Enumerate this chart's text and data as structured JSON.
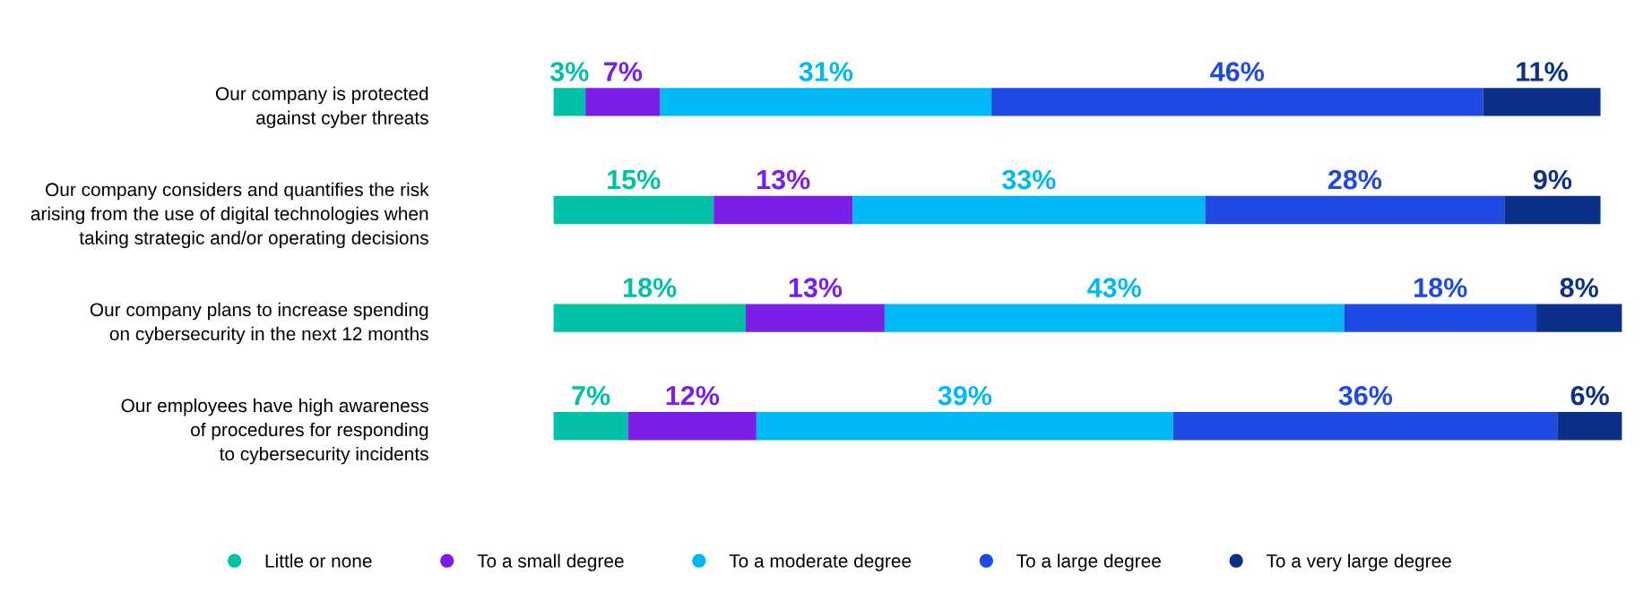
{
  "chart_data": {
    "type": "bar",
    "orientation": "horizontal",
    "stacked": true,
    "categories": [
      "Our company is protected\nagainst cyber threats",
      "Our company considers and quantifies the risk\narising from the use of digital technologies when\ntaking strategic and/or operating decisions",
      "Our company plans to increase spending\non cybersecurity in the next 12 months",
      "Our employees have high awareness\nof procedures for responding\nto cybersecurity incidents"
    ],
    "series": [
      {
        "name": "Little or none",
        "color": "#00c0a8",
        "values": [
          3,
          15,
          18,
          7
        ],
        "value_labels": [
          "3%",
          "15%",
          "18%",
          "7%"
        ]
      },
      {
        "name": "To a small degree",
        "color": "#7a1ee8",
        "values": [
          7,
          13,
          13,
          12
        ],
        "value_labels": [
          "7%",
          "13%",
          "13%",
          "12%"
        ]
      },
      {
        "name": "To a moderate degree",
        "color": "#00b8f5",
        "values": [
          31,
          33,
          43,
          39
        ],
        "value_labels": [
          "31%",
          "33%",
          "43%",
          "39%"
        ]
      },
      {
        "name": "To a large degree",
        "color": "#1e49e2",
        "values": [
          46,
          28,
          18,
          36
        ],
        "value_labels": [
          "46%",
          "28%",
          "18%",
          "36%"
        ]
      },
      {
        "name": "To a very large degree",
        "color": "#0c2f8a",
        "values": [
          11,
          9,
          8,
          6
        ],
        "value_labels": [
          "11%",
          "9%",
          "8%",
          "6%"
        ]
      }
    ],
    "tick_labels": "y",
    "grid": false,
    "legend": "bottom left",
    "marker": "circle"
  }
}
